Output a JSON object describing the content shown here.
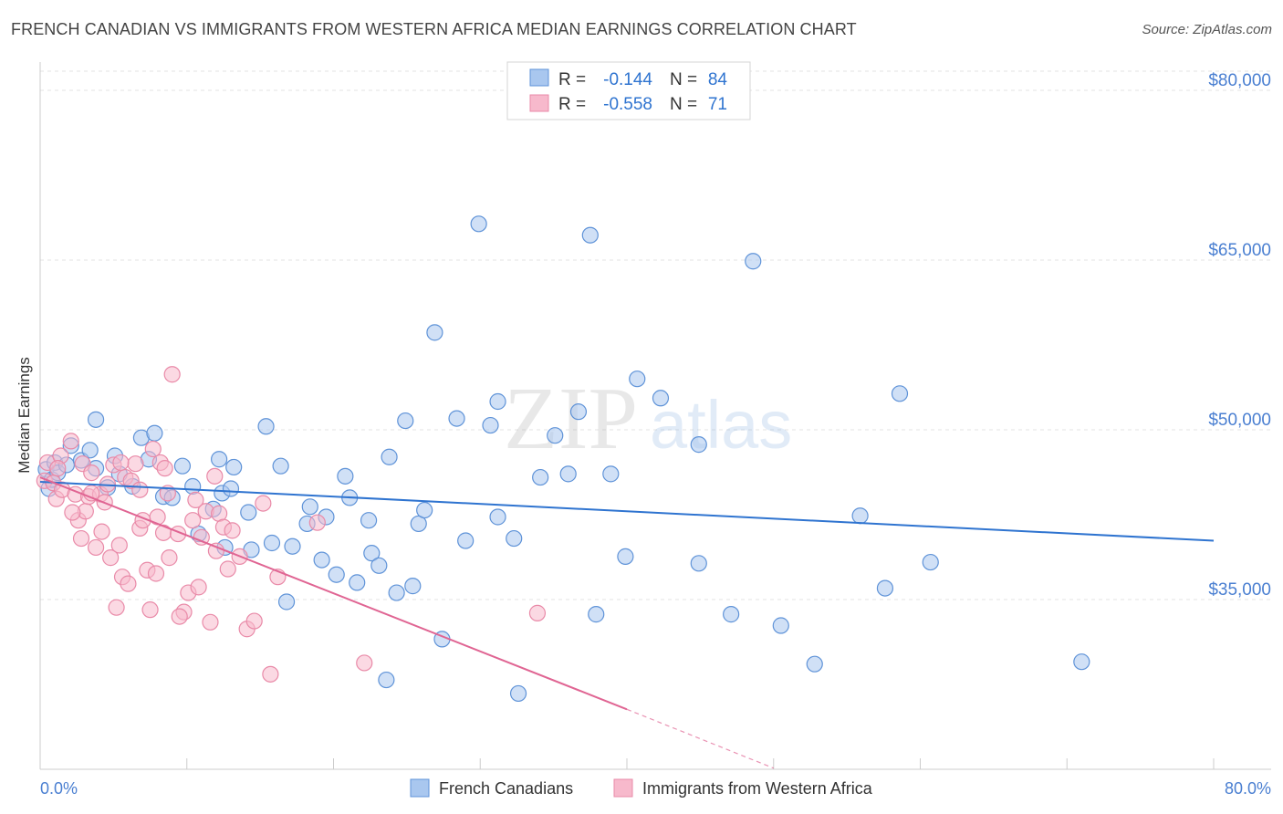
{
  "header": {
    "title": "FRENCH CANADIAN VS IMMIGRANTS FROM WESTERN AFRICA MEDIAN EARNINGS CORRELATION CHART",
    "source": "Source: ZipAtlas.com"
  },
  "watermark": {
    "zip": "ZIP",
    "atlas": "atlas"
  },
  "legend_stats": [
    {
      "r_label": "R =",
      "r_value": "-0.144",
      "n_label": "N =",
      "n_value": "84"
    },
    {
      "r_label": "R =",
      "r_value": "-0.558",
      "n_label": "N =",
      "n_value": "71"
    }
  ],
  "chart_data": {
    "type": "scatter",
    "title": "FRENCH CANADIAN VS IMMIGRANTS FROM WESTERN AFRICA MEDIAN EARNINGS CORRELATION CHART",
    "xlabel": "",
    "ylabel": "Median Earnings",
    "xlim": [
      0,
      80
    ],
    "ylim": [
      20000,
      82500
    ],
    "x_tick_labels": [
      "0.0%",
      "80.0%"
    ],
    "y_ticks": [
      35000,
      50000,
      65000,
      80000
    ],
    "y_tick_labels": [
      "$35,000",
      "$50,000",
      "$65,000",
      "$80,000"
    ],
    "grid": true,
    "legend_position": "bottom",
    "colors": {
      "blue_fill": "#a9c7ef",
      "blue_stroke": "#5f93d8",
      "blue_line": "#2f74d0",
      "pink_fill": "#f7b9cc",
      "pink_stroke": "#e98aa8",
      "pink_line": "#e06593",
      "axis_text": "#4a7fd1"
    },
    "series": [
      {
        "name": "French Canadians",
        "color": "blue",
        "trend": {
          "x1": 0,
          "y1": 45400,
          "x2": 80,
          "y2": 40200
        },
        "points": [
          [
            0.4,
            46500
          ],
          [
            0.6,
            44800
          ],
          [
            0.8,
            45600
          ],
          [
            1.0,
            47100
          ],
          [
            1.2,
            46200
          ],
          [
            1.8,
            46900
          ],
          [
            2.1,
            48600
          ],
          [
            2.8,
            47300
          ],
          [
            3.4,
            48200
          ],
          [
            3.8,
            46600
          ],
          [
            3.8,
            50900
          ],
          [
            4.6,
            44900
          ],
          [
            5.1,
            47700
          ],
          [
            5.4,
            46100
          ],
          [
            6.3,
            45000
          ],
          [
            6.9,
            49300
          ],
          [
            7.4,
            47400
          ],
          [
            7.8,
            49700
          ],
          [
            8.4,
            44100
          ],
          [
            9.0,
            44000
          ],
          [
            9.7,
            46800
          ],
          [
            10.4,
            45000
          ],
          [
            10.8,
            40800
          ],
          [
            11.8,
            43000
          ],
          [
            12.2,
            47400
          ],
          [
            12.4,
            44400
          ],
          [
            13.2,
            46700
          ],
          [
            13.0,
            44800
          ],
          [
            12.6,
            39600
          ],
          [
            14.2,
            42700
          ],
          [
            14.4,
            39400
          ],
          [
            15.4,
            50300
          ],
          [
            15.8,
            40000
          ],
          [
            16.4,
            46800
          ],
          [
            16.8,
            34800
          ],
          [
            17.2,
            39700
          ],
          [
            18.2,
            41700
          ],
          [
            18.4,
            43200
          ],
          [
            19.2,
            38500
          ],
          [
            19.5,
            42300
          ],
          [
            20.2,
            37200
          ],
          [
            20.8,
            45900
          ],
          [
            21.1,
            44000
          ],
          [
            21.6,
            36500
          ],
          [
            22.4,
            42000
          ],
          [
            22.6,
            39100
          ],
          [
            23.1,
            38000
          ],
          [
            23.6,
            27900
          ],
          [
            23.8,
            47600
          ],
          [
            24.3,
            35600
          ],
          [
            24.9,
            50800
          ],
          [
            25.4,
            36200
          ],
          [
            25.8,
            41700
          ],
          [
            26.2,
            42900
          ],
          [
            26.9,
            58600
          ],
          [
            27.4,
            31500
          ],
          [
            28.4,
            51000
          ],
          [
            29.0,
            40200
          ],
          [
            29.9,
            68200
          ],
          [
            30.7,
            50400
          ],
          [
            31.2,
            52500
          ],
          [
            31.2,
            42300
          ],
          [
            32.3,
            40400
          ],
          [
            32.6,
            26700
          ],
          [
            34.1,
            45800
          ],
          [
            35.1,
            49500
          ],
          [
            36.0,
            46100
          ],
          [
            36.7,
            51600
          ],
          [
            37.5,
            67200
          ],
          [
            37.9,
            33700
          ],
          [
            38.9,
            46100
          ],
          [
            39.9,
            38800
          ],
          [
            40.7,
            54500
          ],
          [
            42.3,
            52800
          ],
          [
            44.9,
            48700
          ],
          [
            44.9,
            38200
          ],
          [
            47.1,
            33700
          ],
          [
            48.6,
            64900
          ],
          [
            50.5,
            32700
          ],
          [
            52.8,
            29300
          ],
          [
            55.9,
            42400
          ],
          [
            57.6,
            36000
          ],
          [
            58.6,
            53200
          ],
          [
            60.7,
            38300
          ],
          [
            71.0,
            29500
          ]
        ]
      },
      {
        "name": "Immigrants from Western Africa",
        "color": "pink",
        "trend": {
          "x1": 0,
          "y1": 45800,
          "x2": 40,
          "y2": 25300
        },
        "trend_dashed": {
          "x1": 40,
          "y1": 25300,
          "x2": 50,
          "y2": 20100
        },
        "points": [
          [
            0.3,
            45500
          ],
          [
            0.5,
            47100
          ],
          [
            0.9,
            45300
          ],
          [
            1.1,
            43900
          ],
          [
            1.4,
            47700
          ],
          [
            1.5,
            44700
          ],
          [
            2.1,
            49000
          ],
          [
            2.4,
            44300
          ],
          [
            2.6,
            42000
          ],
          [
            2.9,
            47000
          ],
          [
            3.1,
            42800
          ],
          [
            3.3,
            44100
          ],
          [
            3.5,
            46200
          ],
          [
            3.8,
            39600
          ],
          [
            4.1,
            44300
          ],
          [
            4.4,
            43600
          ],
          [
            4.8,
            38700
          ],
          [
            5.0,
            46900
          ],
          [
            5.2,
            34300
          ],
          [
            5.4,
            39800
          ],
          [
            5.6,
            37000
          ],
          [
            5.8,
            45800
          ],
          [
            6.2,
            45500
          ],
          [
            6.5,
            47000
          ],
          [
            6.8,
            41300
          ],
          [
            7.0,
            42000
          ],
          [
            7.3,
            37600
          ],
          [
            7.5,
            34100
          ],
          [
            7.7,
            48300
          ],
          [
            7.9,
            37300
          ],
          [
            8.2,
            47100
          ],
          [
            8.5,
            46600
          ],
          [
            8.8,
            38700
          ],
          [
            8.4,
            40900
          ],
          [
            8.7,
            44400
          ],
          [
            9.0,
            54900
          ],
          [
            9.4,
            40800
          ],
          [
            9.8,
            33900
          ],
          [
            10.1,
            35600
          ],
          [
            10.4,
            42000
          ],
          [
            10.6,
            43800
          ],
          [
            11.0,
            40500
          ],
          [
            11.3,
            42800
          ],
          [
            11.6,
            33000
          ],
          [
            11.9,
            45900
          ],
          [
            12.2,
            42600
          ],
          [
            12.5,
            41400
          ],
          [
            12.8,
            37700
          ],
          [
            13.1,
            41100
          ],
          [
            13.6,
            38800
          ],
          [
            14.1,
            32400
          ],
          [
            14.6,
            33100
          ],
          [
            15.2,
            43500
          ],
          [
            15.7,
            28400
          ],
          [
            16.2,
            37000
          ],
          [
            18.9,
            41800
          ],
          [
            22.1,
            29400
          ],
          [
            33.9,
            33800
          ],
          [
            1.2,
            46600
          ],
          [
            2.2,
            42700
          ],
          [
            3.5,
            44400
          ],
          [
            4.2,
            41000
          ],
          [
            5.5,
            47100
          ],
          [
            6.8,
            44700
          ],
          [
            8.0,
            42300
          ],
          [
            9.5,
            33500
          ],
          [
            10.8,
            36100
          ],
          [
            12.0,
            39300
          ],
          [
            6.0,
            36400
          ],
          [
            4.6,
            45200
          ],
          [
            2.8,
            40400
          ]
        ]
      }
    ]
  },
  "bottom_legend": [
    {
      "label": "French Canadians"
    },
    {
      "label": "Immigrants from Western Africa"
    }
  ]
}
